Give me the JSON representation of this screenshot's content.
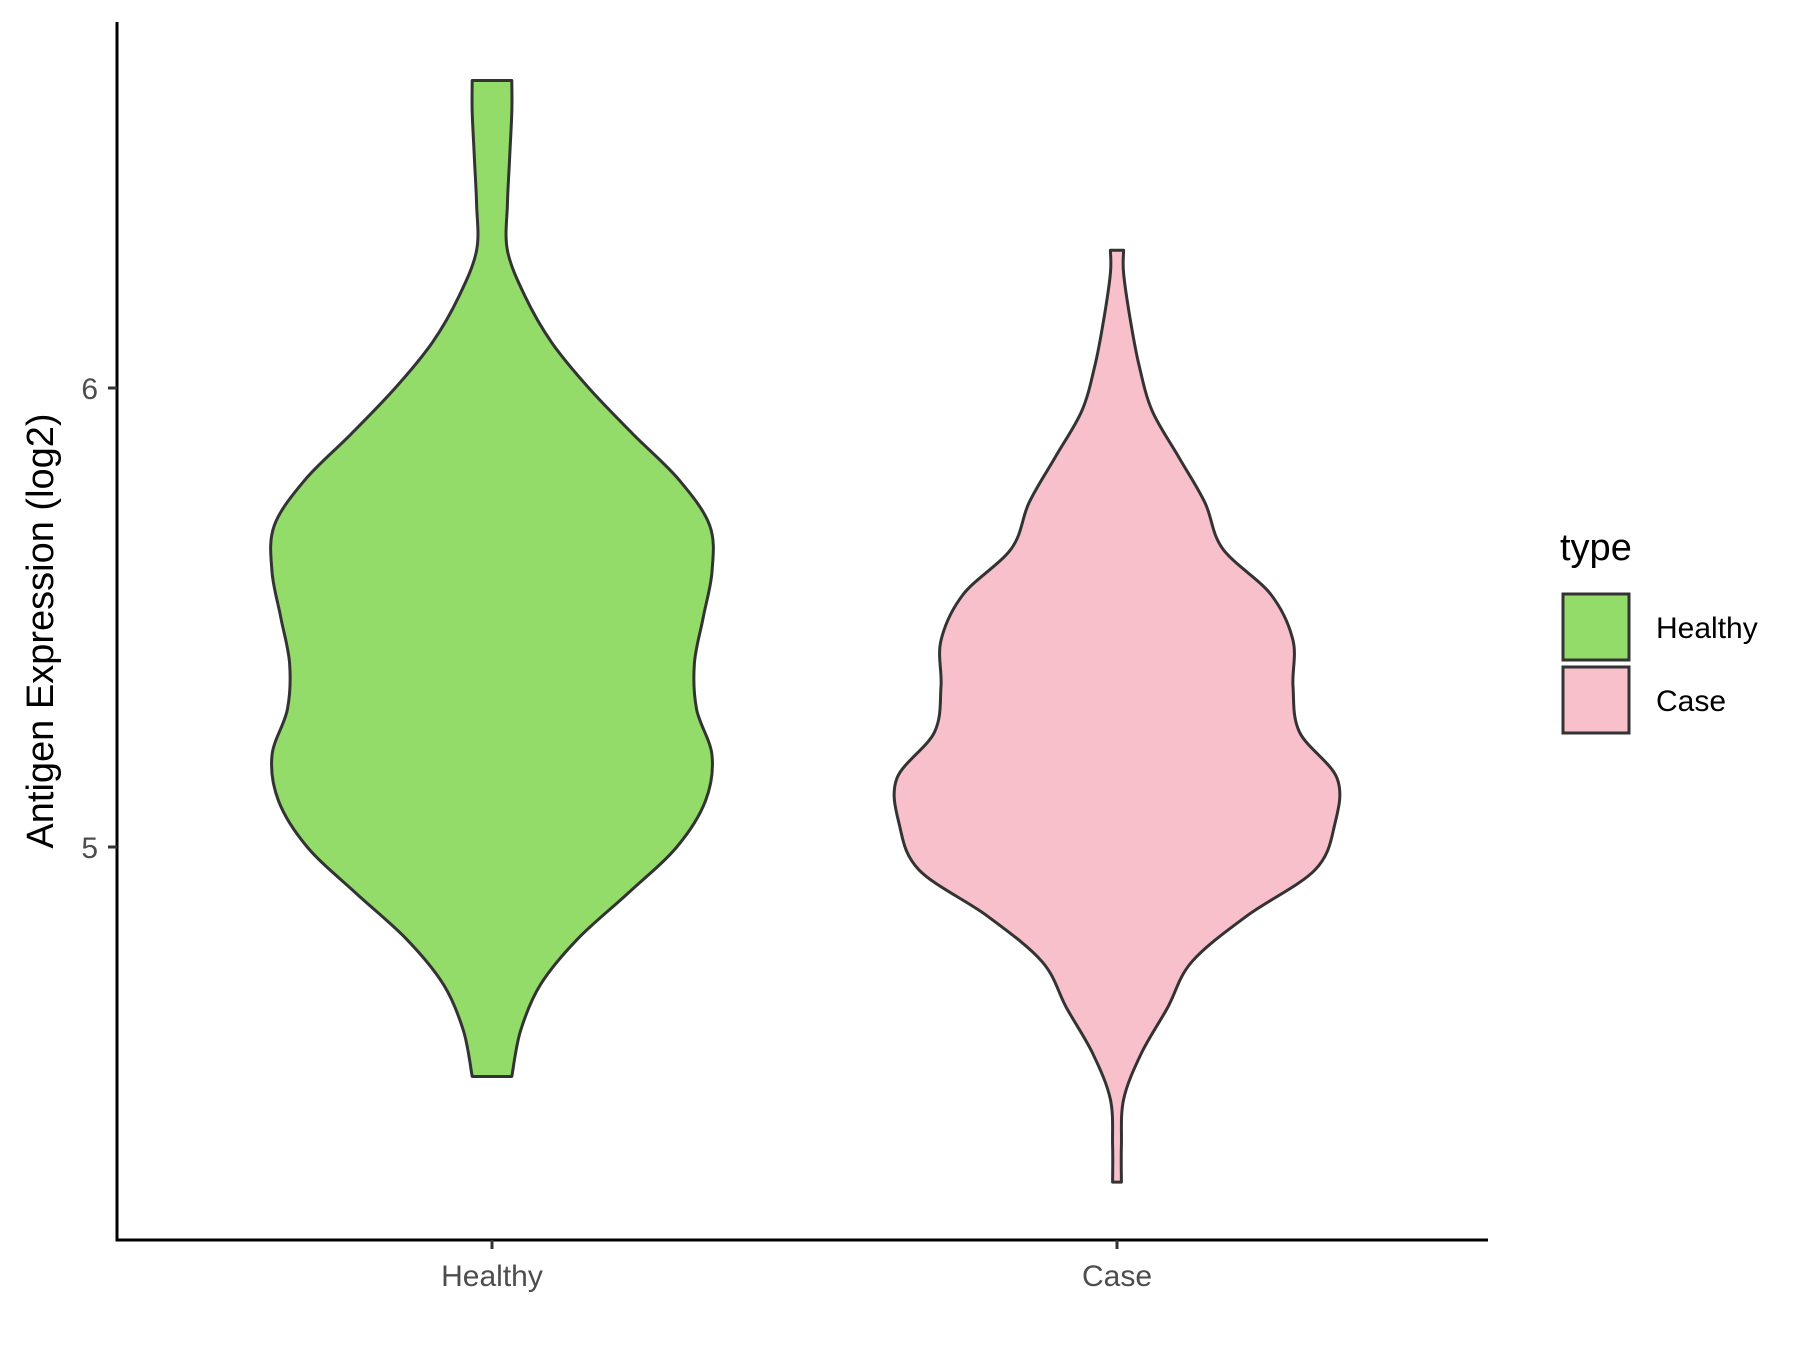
{
  "chart_data": {
    "type": "violin",
    "title": "",
    "xlabel": "",
    "ylabel": "Antigen Expression (log2)",
    "categories": [
      "Healthy",
      "Case"
    ],
    "y_ticks": [
      5,
      6
    ],
    "y_tick_labels": [
      "5",
      "6"
    ],
    "ylim": [
      4.15,
      6.8
    ],
    "grid": false,
    "legend": {
      "title": "type",
      "position": "right",
      "entries": [
        {
          "label": "Healthy",
          "color": "#93DC6A"
        },
        {
          "label": "Case",
          "color": "#F7C0CB"
        }
      ]
    },
    "series": [
      {
        "category": "Healthy",
        "color": "#93DC6A",
        "min": 4.5,
        "max": 6.67,
        "profile": [
          [
            4.5,
            0.09
          ],
          [
            4.6,
            0.13
          ],
          [
            4.7,
            0.22
          ],
          [
            4.8,
            0.39
          ],
          [
            4.9,
            0.62
          ],
          [
            5.0,
            0.84
          ],
          [
            5.1,
            0.97
          ],
          [
            5.2,
            1.0
          ],
          [
            5.3,
            0.93
          ],
          [
            5.4,
            0.92
          ],
          [
            5.5,
            0.96
          ],
          [
            5.6,
            1.0
          ],
          [
            5.7,
            0.99
          ],
          [
            5.8,
            0.85
          ],
          [
            5.9,
            0.64
          ],
          [
            6.0,
            0.44
          ],
          [
            6.1,
            0.27
          ],
          [
            6.2,
            0.15
          ],
          [
            6.3,
            0.07
          ],
          [
            6.4,
            0.07
          ],
          [
            6.5,
            0.08
          ],
          [
            6.6,
            0.09
          ],
          [
            6.67,
            0.09
          ]
        ]
      },
      {
        "category": "Case",
        "color": "#F7C0CB",
        "min": 4.27,
        "max": 6.3,
        "profile": [
          [
            4.27,
            0.02
          ],
          [
            4.35,
            0.02
          ],
          [
            4.45,
            0.03
          ],
          [
            4.55,
            0.11
          ],
          [
            4.65,
            0.23
          ],
          [
            4.75,
            0.34
          ],
          [
            4.85,
            0.59
          ],
          [
            4.95,
            0.9
          ],
          [
            5.05,
            0.99
          ],
          [
            5.15,
            1.0
          ],
          [
            5.25,
            0.83
          ],
          [
            5.35,
            0.8
          ],
          [
            5.45,
            0.8
          ],
          [
            5.55,
            0.7
          ],
          [
            5.65,
            0.48
          ],
          [
            5.75,
            0.4
          ],
          [
            5.85,
            0.28
          ],
          [
            5.95,
            0.16
          ],
          [
            6.05,
            0.1
          ],
          [
            6.15,
            0.06
          ],
          [
            6.25,
            0.03
          ],
          [
            6.3,
            0.03
          ]
        ]
      }
    ]
  }
}
